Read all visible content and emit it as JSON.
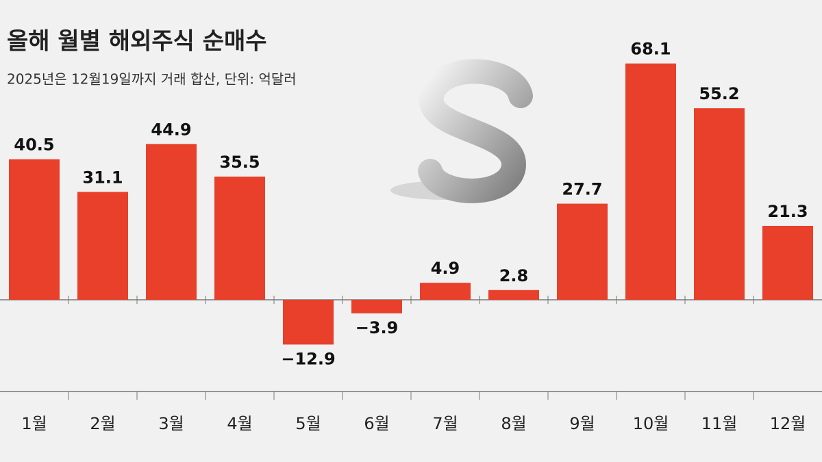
{
  "chart_data": {
    "type": "bar",
    "title": "올해 월별 해외주식 순매수",
    "subtitle": "2025년은 12월19일까지 거래 합산, 단위: 억달러",
    "categories": [
      "1월",
      "2월",
      "3월",
      "4월",
      "5월",
      "6월",
      "7월",
      "8월",
      "9월",
      "10월",
      "11월",
      "12월"
    ],
    "values": [
      40.5,
      31.1,
      44.9,
      35.5,
      -12.9,
      -3.9,
      4.9,
      2.8,
      27.7,
      68.1,
      55.2,
      21.3
    ],
    "value_labels": [
      "40.5",
      "31.1",
      "44.9",
      "35.5",
      "−12.9",
      "−3.9",
      "4.9",
      "2.8",
      "27.7",
      "68.1",
      "55.2",
      "21.3"
    ],
    "color": "#e8402a"
  }
}
